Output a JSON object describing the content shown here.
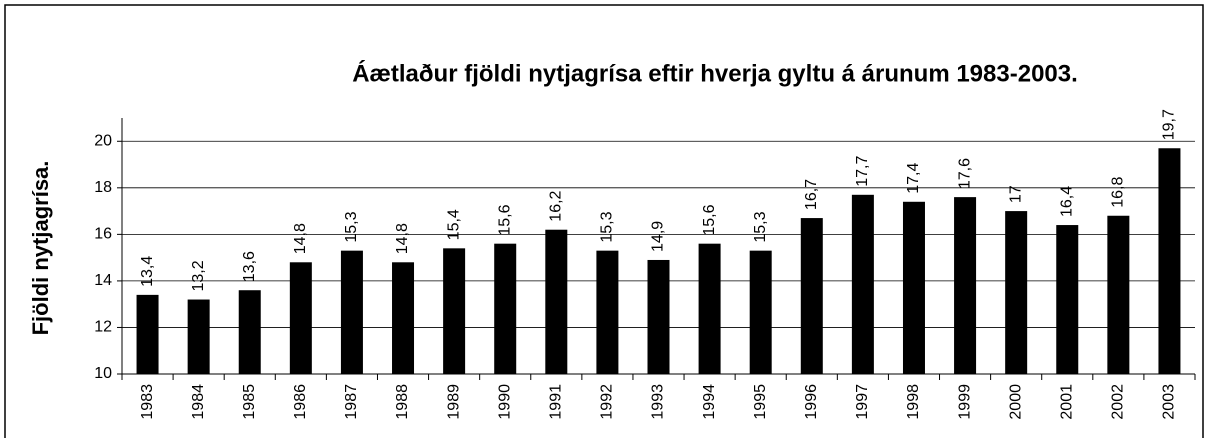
{
  "chart_data": {
    "type": "bar",
    "title": "Áætlaður fjöldi nytjagrísa eftir hverja gyltu á árunum 1983-2003.",
    "y_label": "Fjöldi nytjagrísa.",
    "categories": [
      "1983",
      "1984",
      "1985",
      "1986",
      "1987",
      "1988",
      "1989",
      "1990",
      "1991",
      "1992",
      "1993",
      "1994",
      "1995",
      "1996",
      "1997",
      "1998",
      "1999",
      "2000",
      "2001",
      "2002",
      "2003"
    ],
    "values": [
      13.4,
      13.2,
      13.6,
      14.8,
      15.3,
      14.8,
      15.4,
      15.6,
      16.2,
      15.3,
      14.9,
      15.6,
      15.3,
      16.7,
      17.7,
      17.4,
      17.6,
      17,
      16.4,
      16.8,
      19.7
    ],
    "value_labels": [
      "13,4",
      "13,2",
      "13,6",
      "14,8",
      "15,3",
      "14,8",
      "15,4",
      "15,6",
      "16,2",
      "15,3",
      "14,9",
      "15,6",
      "15,3",
      "16,7",
      "17,7",
      "17,4",
      "17,6",
      "17",
      "16,4",
      "16,8",
      "19,7"
    ],
    "color": "#000000",
    "ylim": [
      10,
      21
    ],
    "yticks": [
      10,
      12,
      14,
      16,
      18,
      20
    ],
    "grid": true
  }
}
